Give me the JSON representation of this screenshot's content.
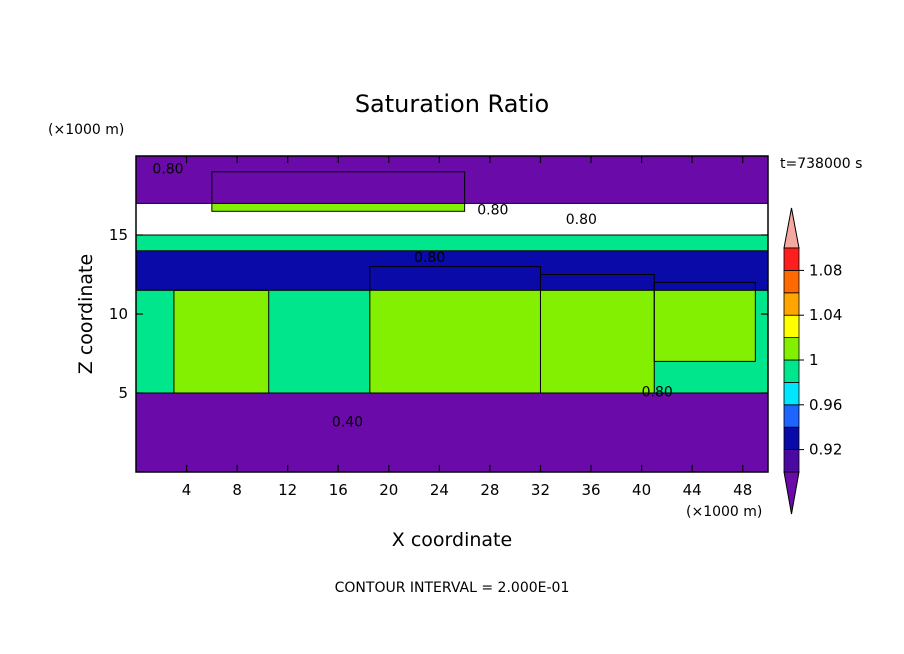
{
  "chart_data": {
    "type": "heatmap",
    "title": "Saturation Ratio",
    "xlabel": "X coordinate",
    "ylabel": "Z coordinate",
    "x_unit": "(×1000 m)",
    "y_unit": "(×1000 m)",
    "time_label": "t=738000 s",
    "footer": "CONTOUR INTERVAL = 2.000E-01",
    "xlim": [
      0,
      50
    ],
    "ylim": [
      0,
      20
    ],
    "x_ticks": [
      4,
      8,
      12,
      16,
      20,
      24,
      28,
      32,
      36,
      40,
      44,
      48
    ],
    "y_ticks": [
      5,
      10,
      15
    ],
    "colorbar": {
      "levels": [
        0.9,
        0.92,
        0.94,
        0.96,
        0.98,
        1.0,
        1.02,
        1.04,
        1.06,
        1.08,
        1.1
      ],
      "tick_labels": [
        "0.92",
        "0.96",
        "1",
        "1.04",
        "1.08"
      ],
      "tick_values": [
        0.92,
        0.96,
        1.0,
        1.04,
        1.08
      ],
      "colors": [
        "#4a0aa2",
        "#0a0aa8",
        "#1e64ff",
        "#00e6ff",
        "#00e68c",
        "#82f000",
        "#ffff00",
        "#ffa500",
        "#ff6a00",
        "#ff1e1e"
      ],
      "under_color": "#6a0aa8",
      "over_color": "#f4a8a0"
    },
    "regions": [
      {
        "x": [
          0,
          50
        ],
        "y": [
          0,
          5
        ],
        "value": 0.5
      },
      {
        "x": [
          0,
          50
        ],
        "y": [
          5,
          15
        ],
        "value": 0.99
      },
      {
        "x": [
          3,
          10.5
        ],
        "y": [
          5,
          11.5
        ],
        "value": 1.01
      },
      {
        "x": [
          18.5,
          32
        ],
        "y": [
          5,
          13
        ],
        "value": 1.01
      },
      {
        "x": [
          32,
          41
        ],
        "y": [
          5,
          12.5
        ],
        "value": 1.01
      },
      {
        "x": [
          41,
          49
        ],
        "y": [
          7,
          12
        ],
        "value": 1.01
      },
      {
        "x": [
          0,
          50
        ],
        "y": [
          11.5,
          14
        ],
        "value": 0.93
      },
      {
        "x": [
          6,
          26
        ],
        "y": [
          16.5,
          19
        ],
        "value": 1.01
      },
      {
        "x": [
          0,
          50
        ],
        "y": [
          17,
          20
        ],
        "value": 0.7
      }
    ],
    "contour_labels": [
      {
        "x": 1.3,
        "y": 19.2,
        "text": "0.80"
      },
      {
        "x": 27,
        "y": 16.6,
        "text": "0.80"
      },
      {
        "x": 34,
        "y": 16.0,
        "text": "0.80"
      },
      {
        "x": 22,
        "y": 13.6,
        "text": "0.80"
      },
      {
        "x": 40,
        "y": 5.1,
        "text": "0.80"
      },
      {
        "x": 15.5,
        "y": 3.2,
        "text": "0.40"
      }
    ]
  }
}
